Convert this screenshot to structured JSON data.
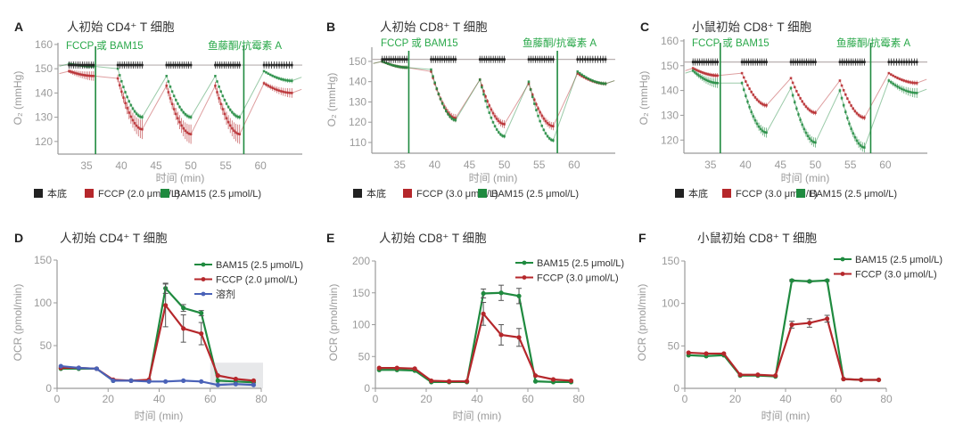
{
  "panels": {
    "A": {
      "label": "A",
      "title": "人初始 CD4⁺ T 细胞",
      "annot_left": "FCCP 或 BAM15",
      "annot_right": "鱼藤酮/抗霉素 A",
      "xlabel": "时间 (min)",
      "ylabel": "O₂ (mmHg)",
      "legend": [
        "本底",
        "FCCP (2.0 μmol/L)",
        "BAM15 (2.5 μmol/L)"
      ]
    },
    "B": {
      "label": "B",
      "title": "人初始 CD8⁺ T 细胞",
      "annot_left": "FCCP 或 BAM15",
      "annot_right": "鱼藤酮/抗霉素 A",
      "xlabel": "时间 (min)",
      "ylabel": "O₂ (mmHg)",
      "legend": [
        "本底",
        "FCCP (3.0 μmol/L)",
        "BAM15 (2.5 μmol/L)"
      ]
    },
    "C": {
      "label": "C",
      "title": "小鼠初始 CD8⁺ T 细胞",
      "annot_left": "FCCP 或 BAM15",
      "annot_right": "鱼藤酮/抗霉素 A",
      "xlabel": "时间 (min)",
      "ylabel": "O₂ (mmHg)",
      "legend": [
        "本底",
        "FCCP (3.0 μmol/L)",
        "BAM15 (2.5 μmol/L)"
      ]
    },
    "D": {
      "label": "D",
      "title": "人初始 CD4⁺ T 细胞",
      "xlabel": "时间 (min)",
      "ylabel": "OCR (pmol/min)",
      "legend": [
        "BAM15 (2.5 μmol/L)",
        "FCCP (2.0 μmol/L)",
        "溶剂"
      ]
    },
    "E": {
      "label": "E",
      "title": "人初始 CD8⁺ T 细胞",
      "xlabel": "时间 (min)",
      "ylabel": "OCR (pmol/min)",
      "legend": [
        "BAM15 (2.5 μmol/L)",
        "FCCP (3.0 μmol/L)"
      ]
    },
    "F": {
      "label": "F",
      "title": "小鼠初始 CD8⁺ T 细胞",
      "xlabel": "时间 (min)",
      "ylabel": "OCR (pmol/min)",
      "legend": [
        "BAM15 (2.5 μmol/L)",
        "FCCP (3.0 μmol/L)"
      ]
    }
  },
  "colors": {
    "basal": "#222222",
    "fccp": "#b5272b",
    "bam15": "#1f8a3f",
    "vehicle": "#4a62b8",
    "annot": "#2aa84a"
  },
  "chart_data": [
    {
      "id": "A",
      "type": "line",
      "xlim": [
        30.9,
        66
      ],
      "ylim": [
        114.8,
        160.7
      ],
      "xticks": [
        35,
        40,
        45,
        50,
        55,
        60
      ],
      "yticks": [
        120,
        130,
        140,
        150,
        160
      ],
      "injections": [
        36.3,
        57.6
      ],
      "baseline": 151.5,
      "segments_min": [
        [
          32.5,
          36
        ],
        [
          39.5,
          43
        ],
        [
          46.5,
          50
        ],
        [
          53.5,
          57
        ],
        [
          60.5,
          64.5
        ]
      ],
      "series": [
        {
          "name": "FCCP (2.0 μmol/L)",
          "color_key": "fccp",
          "start": [
            149,
            146,
            143,
            143,
            144
          ],
          "end": [
            147,
            125,
            123,
            123,
            140
          ],
          "err": [
            2,
            4,
            4,
            4,
            2
          ]
        },
        {
          "name": "BAM15 (2.5 μmol/L)",
          "color_key": "bam15",
          "start": [
            152,
            150,
            147,
            147,
            149
          ],
          "end": [
            151,
            130,
            130,
            130,
            145
          ],
          "err": [
            1,
            1,
            1,
            1,
            1
          ]
        }
      ]
    },
    {
      "id": "B",
      "type": "line",
      "xlim": [
        31.0,
        65.9
      ],
      "ylim": [
        104.7,
        157
      ],
      "xticks": [
        35,
        40,
        45,
        50,
        55,
        60
      ],
      "yticks": [
        110,
        120,
        130,
        140,
        150
      ],
      "injections": [
        36.3,
        57.6
      ],
      "baseline": 151,
      "segments_min": [
        [
          32.5,
          36
        ],
        [
          39.5,
          43
        ],
        [
          46.5,
          50
        ],
        [
          53.5,
          57
        ],
        [
          60.5,
          64.5
        ]
      ],
      "series": [
        {
          "name": "FCCP (3.0 μmol/L)",
          "color_key": "fccp",
          "start": [
            150,
            145,
            141,
            139,
            144
          ],
          "end": [
            147,
            122,
            119,
            118,
            139
          ],
          "err": [
            1,
            2,
            2,
            2,
            1
          ]
        },
        {
          "name": "BAM15 (2.5 μmol/L)",
          "color_key": "bam15",
          "start": [
            150,
            146,
            141,
            140,
            145
          ],
          "end": [
            147,
            121,
            113,
            111,
            139
          ],
          "err": [
            1,
            1,
            1,
            1,
            1
          ]
        }
      ]
    },
    {
      "id": "C",
      "type": "line",
      "xlim": [
        31.2,
        66
      ],
      "ylim": [
        114.7,
        160.7
      ],
      "xticks": [
        35,
        40,
        45,
        50,
        55,
        60
      ],
      "yticks": [
        120,
        130,
        140,
        150,
        160
      ],
      "injections": [
        36.4,
        57.9
      ],
      "baseline": 151.5,
      "segments_min": [
        [
          32.5,
          36
        ],
        [
          39.5,
          43
        ],
        [
          46.5,
          50
        ],
        [
          53.5,
          57
        ],
        [
          60.5,
          64.5
        ]
      ],
      "series": [
        {
          "name": "FCCP (3.0 μmol/L)",
          "color_key": "fccp",
          "start": [
            149,
            147,
            145,
            144,
            147
          ],
          "end": [
            146,
            134,
            131,
            129,
            143
          ],
          "err": [
            1,
            1,
            1,
            1,
            1
          ]
        },
        {
          "name": "BAM15 (2.5 μmol/L)",
          "color_key": "bam15",
          "start": [
            148,
            143,
            141,
            140,
            144
          ],
          "end": [
            143,
            123,
            119,
            117,
            139
          ],
          "err": [
            2,
            2,
            2,
            2,
            2
          ]
        }
      ]
    },
    {
      "id": "D",
      "type": "line",
      "xlim": [
        0,
        80
      ],
      "ylim": [
        0,
        150
      ],
      "xticks": [
        0,
        20,
        40,
        60,
        80
      ],
      "yticks": [
        0,
        50,
        100,
        150
      ],
      "x": [
        1.5,
        8.5,
        15.5,
        22,
        29,
        36,
        42.5,
        49.5,
        56.5,
        63,
        70,
        77
      ],
      "shaded_x": [
        60,
        80
      ],
      "series": [
        {
          "name": "BAM15 (2.5 μmol/L)",
          "color_key": "bam15",
          "values": [
            23,
            23,
            23,
            9,
            9,
            9,
            117,
            94,
            88,
            9,
            8,
            7
          ],
          "err": [
            0,
            0,
            0,
            0,
            0,
            0,
            6,
            4,
            3,
            0,
            0,
            0
          ]
        },
        {
          "name": "FCCP (2.0 μmol/L)",
          "color_key": "fccp",
          "values": [
            24,
            24,
            23,
            10,
            9,
            10,
            97,
            70,
            64,
            15,
            11,
            9
          ],
          "err": [
            0,
            0,
            0,
            0,
            0,
            0,
            25,
            16,
            13,
            0,
            0,
            0
          ]
        },
        {
          "name": "溶剂",
          "color_key": "vehicle",
          "values": [
            26,
            24,
            23,
            9,
            9,
            8,
            8,
            9,
            8,
            4,
            5,
            4
          ],
          "err": [
            0,
            0,
            0,
            0,
            0,
            0,
            0,
            0,
            0,
            0,
            0,
            0
          ]
        }
      ]
    },
    {
      "id": "E",
      "type": "line",
      "xlim": [
        0,
        80
      ],
      "ylim": [
        0,
        200
      ],
      "xticks": [
        0,
        20,
        40,
        60,
        80
      ],
      "yticks": [
        0,
        50,
        100,
        150,
        200
      ],
      "x": [
        1.5,
        8.5,
        15.5,
        22,
        29,
        36,
        42.5,
        49.5,
        56.5,
        63,
        70,
        77
      ],
      "series": [
        {
          "name": "BAM15 (2.5 μmol/L)",
          "color_key": "bam15",
          "values": [
            29,
            29,
            28,
            10,
            10,
            10,
            149,
            150,
            145,
            11,
            10,
            10
          ],
          "err": [
            0,
            0,
            0,
            0,
            0,
            0,
            7,
            12,
            12,
            0,
            0,
            0
          ]
        },
        {
          "name": "FCCP (3.0 μmol/L)",
          "color_key": "fccp",
          "values": [
            32,
            32,
            31,
            12,
            11,
            11,
            117,
            84,
            80,
            20,
            14,
            12
          ],
          "err": [
            0,
            0,
            0,
            0,
            0,
            0,
            18,
            16,
            14,
            0,
            0,
            0
          ]
        }
      ]
    },
    {
      "id": "F",
      "type": "line",
      "xlim": [
        0,
        80
      ],
      "ylim": [
        0,
        150
      ],
      "xticks": [
        0,
        20,
        40,
        60,
        80
      ],
      "yticks": [
        0,
        50,
        100,
        150
      ],
      "x": [
        1.5,
        8.5,
        15.5,
        22,
        29,
        36,
        42.5,
        49.5,
        56.5,
        63,
        70,
        77
      ],
      "series": [
        {
          "name": "BAM15 (2.5 μmol/L)",
          "color_key": "bam15",
          "values": [
            39,
            38,
            39,
            15,
            15,
            14,
            127,
            126,
            127,
            11,
            10,
            10
          ],
          "err": [
            0,
            0,
            0,
            0,
            0,
            0,
            1,
            1,
            1,
            0,
            0,
            0
          ]
        },
        {
          "name": "FCCP (3.0 μmol/L)",
          "color_key": "fccp",
          "values": [
            42,
            41,
            41,
            16,
            16,
            15,
            75,
            77,
            82,
            11,
            10,
            10
          ],
          "err": [
            0,
            0,
            0,
            0,
            0,
            0,
            4,
            5,
            4,
            0,
            0,
            0
          ]
        }
      ]
    }
  ]
}
